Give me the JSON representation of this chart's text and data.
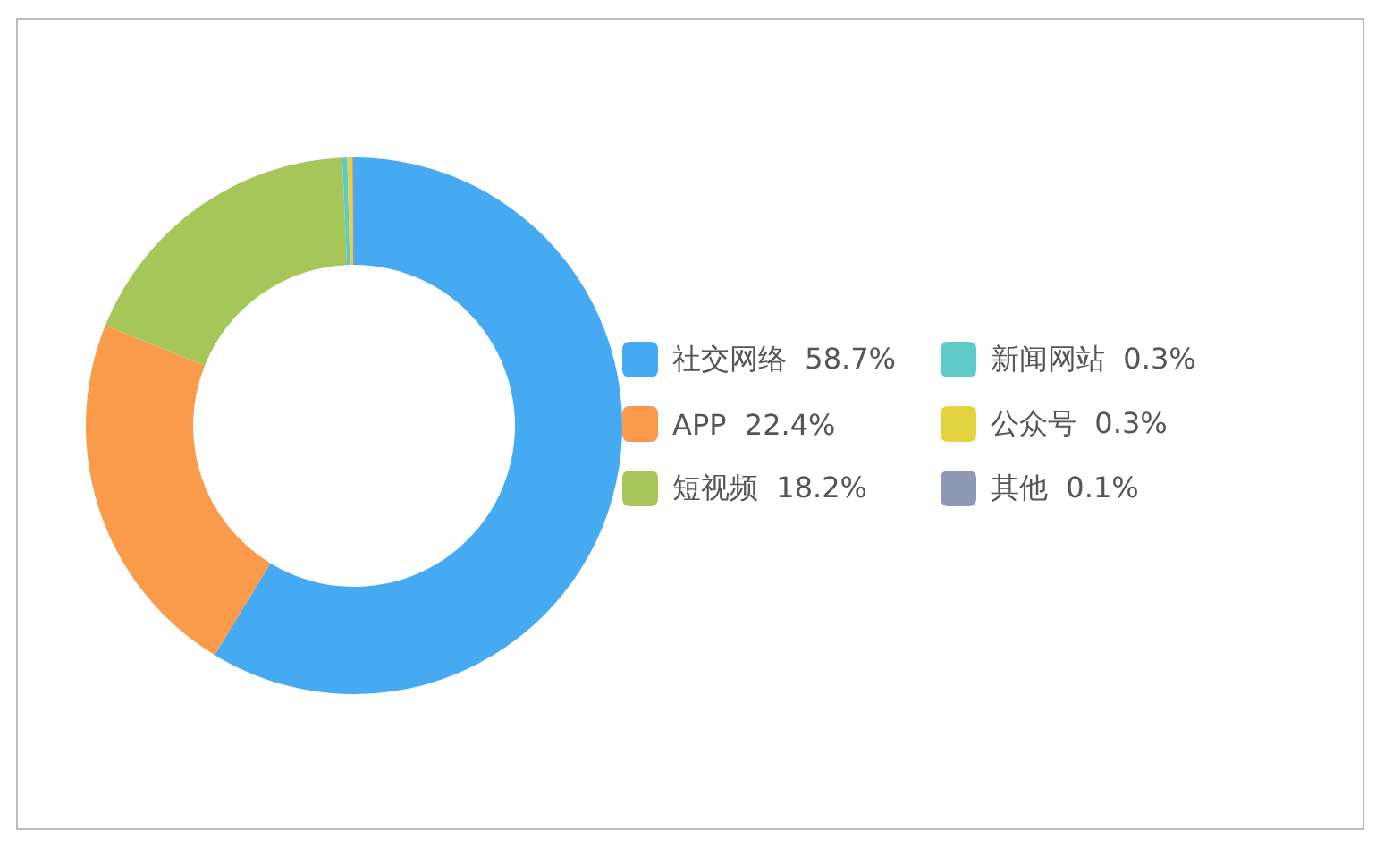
{
  "chart_data": {
    "type": "donut",
    "categories": [
      "社交网络",
      "APP",
      "短视频",
      "新闻网站",
      "公众号",
      "其他"
    ],
    "values": [
      58.7,
      22.4,
      18.2,
      0.3,
      0.3,
      0.1
    ],
    "value_labels": [
      "58.7%",
      "22.4%",
      "18.2%",
      "0.3%",
      "0.3%",
      "0.1%"
    ],
    "colors": [
      "#45aaf2",
      "#f99b4b",
      "#a6c65a",
      "#5ecbc8",
      "#e3d33f",
      "#8e9ab5"
    ],
    "legend": "right"
  }
}
